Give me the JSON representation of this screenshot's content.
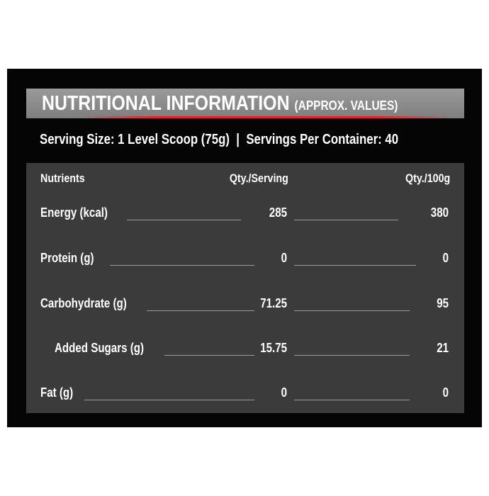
{
  "title": "NUTRITIONAL INFORMATION",
  "title_note": "(APPROX. VALUES)",
  "serving_line": "Serving Size: 1 Level Scoop (75g)  |  Servings Per Container: 40",
  "columns": [
    "Nutrients",
    "Qty./Serving",
    "Qty./100g"
  ],
  "rows": [
    {
      "name": "Energy (kcal)",
      "per_serving": "285",
      "per_100g": "380"
    },
    {
      "name": "Protein (g)",
      "per_serving": "0",
      "per_100g": "0"
    },
    {
      "name": "Carbohydrate (g)",
      "per_serving": "71.25",
      "per_100g": "95"
    },
    {
      "name": "Added Sugars (g)",
      "per_serving": "15.75",
      "per_100g": "21"
    },
    {
      "name": "Fat (g)",
      "per_serving": "0",
      "per_100g": "0"
    }
  ],
  "colors": {
    "accent": "#e8202a",
    "panel": "#050505",
    "table": "#3b3b3c",
    "header": "#8a8a8a"
  }
}
